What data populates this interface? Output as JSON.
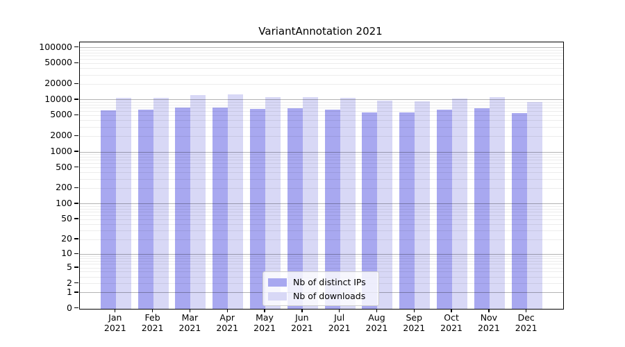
{
  "figure": {
    "title": "VariantAnnotation 2021"
  },
  "chart_data": {
    "type": "bar",
    "title": "VariantAnnotation 2021",
    "categories": [
      "Jan",
      "Feb",
      "Mar",
      "Apr",
      "May",
      "Jun",
      "Jul",
      "Aug",
      "Sep",
      "Oct",
      "Nov",
      "Dec"
    ],
    "category_year": "2021",
    "series": [
      {
        "name": "Nb of distinct IPs",
        "color": "#a8a8f0",
        "values": [
          6300,
          6400,
          7100,
          7100,
          6600,
          6900,
          6400,
          5800,
          5700,
          6400,
          6900,
          5500
        ]
      },
      {
        "name": "Nb of downloads",
        "color": "#d8d8f6",
        "values": [
          10900,
          11000,
          12300,
          12700,
          11200,
          11300,
          10800,
          9600,
          9400,
          10700,
          11300,
          9100
        ]
      }
    ],
    "yscale": "log1p",
    "ylim": [
      0,
      128600
    ],
    "yticks": [
      0,
      1,
      2,
      5,
      10,
      20,
      50,
      100,
      200,
      500,
      1000,
      2000,
      5000,
      10000,
      20000,
      50000,
      100000
    ],
    "grid": {
      "major_color": "#b3b3b3",
      "minor_color": "#ececec",
      "orientation": "horizontal"
    },
    "legend_position": "lower center"
  }
}
